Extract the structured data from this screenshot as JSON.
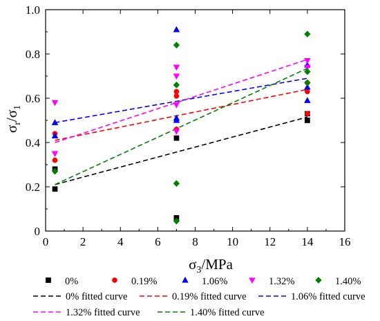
{
  "chart_data": {
    "type": "scatter",
    "title": "",
    "xlabel": "σ3/MPa",
    "ylabel": "σr/σ1",
    "xlim": [
      0,
      16
    ],
    "ylim": [
      0,
      1.0
    ],
    "xticks": [
      "0",
      "2",
      "4",
      "6",
      "8",
      "10",
      "12",
      "14",
      "16"
    ],
    "yticks": [
      "0",
      "0.2",
      "0.4",
      "0.6",
      "0.8",
      "1.0"
    ],
    "legend_placement": "bottom",
    "series": [
      {
        "name": "0%",
        "marker": "square",
        "color": "#000000",
        "points": [
          [
            0.5,
            0.19
          ],
          [
            0.5,
            0.28
          ],
          [
            7,
            0.42
          ],
          [
            7,
            0.06
          ],
          [
            14,
            0.5
          ],
          [
            14,
            0.53
          ]
        ]
      },
      {
        "name": "0.19%",
        "marker": "circle",
        "color": "#ff0000",
        "points": [
          [
            0.5,
            0.44
          ],
          [
            0.5,
            0.32
          ],
          [
            7,
            0.63
          ],
          [
            7,
            0.61
          ],
          [
            7,
            0.46
          ],
          [
            14,
            0.67
          ],
          [
            14,
            0.63
          ],
          [
            14,
            0.53
          ]
        ]
      },
      {
        "name": "1.06%",
        "marker": "triangle-up",
        "color": "#0000ff",
        "points": [
          [
            0.5,
            0.43
          ],
          [
            0.5,
            0.49
          ],
          [
            7,
            0.91
          ],
          [
            7,
            0.51
          ],
          [
            7,
            0.5
          ],
          [
            14,
            0.75
          ],
          [
            14,
            0.65
          ],
          [
            14,
            0.59
          ]
        ]
      },
      {
        "name": "1.32%",
        "marker": "triangle-down",
        "color": "#ff00ff",
        "points": [
          [
            0.5,
            0.58
          ],
          [
            0.5,
            0.35
          ],
          [
            7,
            0.74
          ],
          [
            7,
            0.7
          ],
          [
            7,
            0.57
          ],
          [
            7,
            0.45
          ],
          [
            14,
            0.77
          ],
          [
            14,
            0.74
          ]
        ]
      },
      {
        "name": "1.40%",
        "marker": "diamond",
        "color": "#008000",
        "points": [
          [
            0.5,
            0.27
          ],
          [
            7,
            0.84
          ],
          [
            7,
            0.66
          ],
          [
            7,
            0.215
          ],
          [
            7,
            0.045
          ],
          [
            14,
            0.89
          ],
          [
            14,
            0.72
          ],
          [
            14,
            0.67
          ]
        ]
      }
    ],
    "fitted_curves": [
      {
        "name": "0% fitted curve",
        "color": "#000000",
        "x": [
          0.5,
          14
        ],
        "y": [
          0.21,
          0.515
        ]
      },
      {
        "name": "0.19% fitted curve",
        "color": "#ff0000",
        "x": [
          0.5,
          14
        ],
        "y": [
          0.41,
          0.64
        ]
      },
      {
        "name": "1.06% fitted curve",
        "color": "#0000ff",
        "x": [
          0.5,
          14
        ],
        "y": [
          0.49,
          0.69
        ]
      },
      {
        "name": "1.32% fitted curve",
        "color": "#ff00ff",
        "x": [
          0.5,
          14
        ],
        "y": [
          0.4,
          0.775
        ]
      },
      {
        "name": "1.40% fitted curve",
        "color": "#008000",
        "x": [
          0.5,
          14
        ],
        "y": [
          0.21,
          0.735
        ]
      }
    ]
  }
}
